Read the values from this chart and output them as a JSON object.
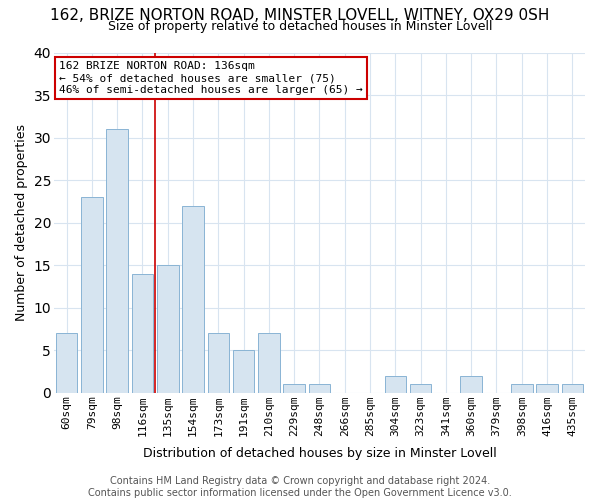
{
  "title": "162, BRIZE NORTON ROAD, MINSTER LOVELL, WITNEY, OX29 0SH",
  "subtitle": "Size of property relative to detached houses in Minster Lovell",
  "xlabel": "Distribution of detached houses by size in Minster Lovell",
  "ylabel": "Number of detached properties",
  "categories": [
    "60sqm",
    "79sqm",
    "98sqm",
    "116sqm",
    "135sqm",
    "154sqm",
    "173sqm",
    "191sqm",
    "210sqm",
    "229sqm",
    "248sqm",
    "266sqm",
    "285sqm",
    "304sqm",
    "323sqm",
    "341sqm",
    "360sqm",
    "379sqm",
    "398sqm",
    "416sqm",
    "435sqm"
  ],
  "values": [
    7,
    23,
    31,
    14,
    15,
    22,
    7,
    5,
    7,
    1,
    1,
    0,
    0,
    2,
    1,
    0,
    2,
    0,
    1,
    1,
    1
  ],
  "bar_color": "#d6e4f0",
  "bar_edge_color": "#8ab4d4",
  "ylim": [
    0,
    40
  ],
  "yticks": [
    0,
    5,
    10,
    15,
    20,
    25,
    30,
    35,
    40
  ],
  "property_line_x": 3.5,
  "property_line_color": "#cc0000",
  "annotation_text": "162 BRIZE NORTON ROAD: 136sqm\n← 54% of detached houses are smaller (75)\n46% of semi-detached houses are larger (65) →",
  "annotation_box_color": "#ffffff",
  "annotation_box_edge_color": "#cc0000",
  "footer": "Contains HM Land Registry data © Crown copyright and database right 2024.\nContains public sector information licensed under the Open Government Licence v3.0.",
  "background_color": "#ffffff",
  "plot_bg_color": "#ffffff",
  "grid_color": "#d8e4f0",
  "title_fontsize": 11,
  "subtitle_fontsize": 9,
  "axis_label_fontsize": 9,
  "tick_fontsize": 8,
  "annotation_fontsize": 8,
  "footer_fontsize": 7
}
